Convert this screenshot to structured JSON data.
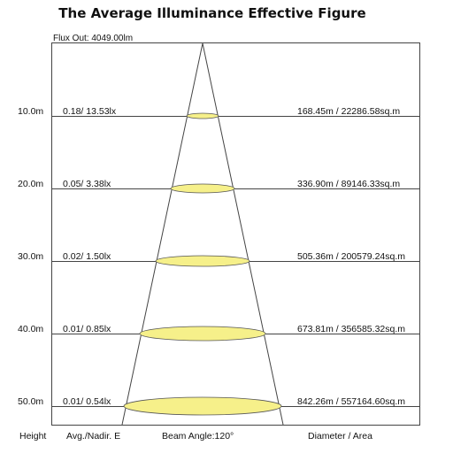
{
  "title": "The Average Illuminance Effective Figure",
  "flux_out": "Flux Out: 4049.00lm",
  "rows": [
    {
      "height": "10.0m",
      "lux": "0.18/ 13.53lx",
      "area": "168.45m / 22286.58sq.m"
    },
    {
      "height": "20.0m",
      "lux": "0.05/ 3.38lx",
      "area": "336.90m / 89146.33sq.m"
    },
    {
      "height": "30.0m",
      "lux": "0.02/ 1.50lx",
      "area": "505.36m / 200579.24sq.m"
    },
    {
      "height": "40.0m",
      "lux": "0.01/ 0.85lx",
      "area": "673.81m / 356585.32sq.m"
    },
    {
      "height": "50.0m",
      "lux": "0.01/ 0.54lx",
      "area": "842.26m / 557164.60sq.m"
    }
  ],
  "footer": {
    "height": "Height",
    "avg": "Avg./Nadir. E",
    "beam": "Beam Angle:120°",
    "diameter": "Diameter / Area"
  },
  "colors": {
    "ellipse_fill": "#f6f08a",
    "ellipse_stroke": "#555555",
    "line": "#444444"
  }
}
